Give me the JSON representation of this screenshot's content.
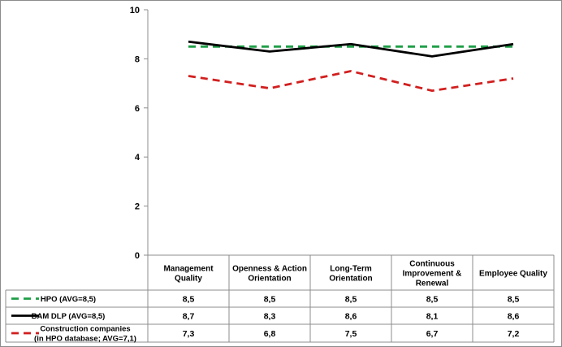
{
  "chart_data": {
    "type": "line",
    "categories": [
      [
        "Management",
        "Quality"
      ],
      [
        "Openness & Action",
        "Orientation"
      ],
      [
        "Long-Term",
        "Orientation"
      ],
      [
        "Continuous",
        "Improvement &",
        "Renewal"
      ],
      [
        "Employee Quality"
      ]
    ],
    "ylim": [
      0,
      10
    ],
    "yticks": [
      "0",
      "2",
      "4",
      "6",
      "8",
      "10"
    ],
    "series": [
      {
        "name": "HPO (AVG=8,5)",
        "color": "#1f9e47",
        "dash": "dashed",
        "values": [
          8.5,
          8.5,
          8.5,
          8.5,
          8.5
        ],
        "labels": [
          "8,5",
          "8,5",
          "8,5",
          "8,5",
          "8,5"
        ]
      },
      {
        "name": "BAM DLP (AVG=8,5)",
        "color": "#000000",
        "dash": "solid",
        "values": [
          8.7,
          8.3,
          8.6,
          8.1,
          8.6
        ],
        "labels": [
          "8,7",
          "8,3",
          "8,6",
          "8,1",
          "8,6"
        ]
      },
      {
        "name": [
          "Construction companies",
          "(in HPO database; AVG=7,1)"
        ],
        "color": "#d21f1f",
        "dash": "dashed",
        "values": [
          7.3,
          6.8,
          7.5,
          6.7,
          7.2
        ],
        "labels": [
          "7,3",
          "6,8",
          "7,5",
          "6,7",
          "7,2"
        ]
      }
    ],
    "grid": "none",
    "legend": "data-table"
  }
}
